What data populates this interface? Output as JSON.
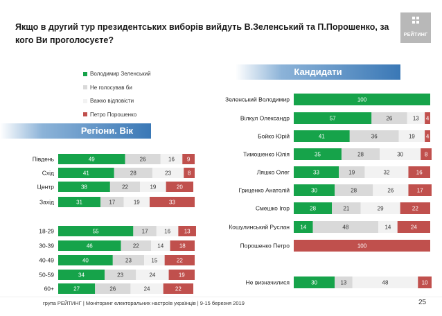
{
  "header": {
    "title": "Якщо в другий тур президентських виборів вийдуть В.Зеленський та П.Порошенко, за кого Ви проголосуєте?",
    "logo_text": "РЕЙТИНГ"
  },
  "banners": {
    "regions": "Регіони. Вік",
    "candidates": "Кандидати"
  },
  "legend": [
    {
      "label": "Володимир Зеленський",
      "color": "#16a34a"
    },
    {
      "label": "Не голосував би",
      "color": "#d9d9d9"
    },
    {
      "label": "Важко відповісти",
      "color": "#f2f2f2"
    },
    {
      "label": "Петро Порошенко",
      "color": "#c0504d"
    }
  ],
  "footer": {
    "text": "група РЕЙТИНГ | Моніторинг електоральних настроїв українців  | 9-15 березня 2019",
    "page": "25"
  },
  "chart_data": [
    {
      "type": "bar",
      "stacked": true,
      "orientation": "horizontal",
      "title": "Регіони. Вік",
      "categories": [
        "Південь",
        "Схід",
        "Центр",
        "Захід",
        "18-29",
        "30-39",
        "40-49",
        "50-59",
        "60+"
      ],
      "series": [
        {
          "name": "Володимир Зеленський",
          "color": "#16a34a",
          "values": [
            49,
            41,
            38,
            31,
            55,
            46,
            40,
            34,
            27
          ]
        },
        {
          "name": "Не голосував би",
          "color": "#d9d9d9",
          "values": [
            26,
            28,
            22,
            17,
            17,
            22,
            23,
            23,
            26
          ]
        },
        {
          "name": "Важко відповісти",
          "color": "#f2f2f2",
          "values": [
            16,
            23,
            19,
            19,
            16,
            14,
            15,
            24,
            24
          ]
        },
        {
          "name": "Петро Порошенко",
          "color": "#c0504d",
          "values": [
            9,
            8,
            20,
            33,
            13,
            18,
            22,
            19,
            22
          ]
        }
      ],
      "xlim": [
        0,
        100
      ]
    },
    {
      "type": "bar",
      "stacked": true,
      "orientation": "horizontal",
      "title": "Кандидати",
      "categories": [
        "Зеленський Володимир",
        "Вілкул Олександр",
        "Бойко Юрій",
        "Тимошенко Юлія",
        "Ляшко Олег",
        "Гриценко Анатолій",
        "Смешко Ігор",
        "Кошулинський Руслан",
        "Порошенко Петро",
        "Не визначилися"
      ],
      "series": [
        {
          "name": "Володимир Зеленський",
          "color": "#16a34a",
          "values": [
            100,
            57,
            41,
            35,
            33,
            30,
            28,
            14,
            0,
            30
          ]
        },
        {
          "name": "Не голосував би",
          "color": "#d9d9d9",
          "values": [
            0,
            26,
            36,
            28,
            19,
            28,
            21,
            48,
            0,
            13
          ]
        },
        {
          "name": "Важко відповісти",
          "color": "#f2f2f2",
          "values": [
            0,
            13,
            19,
            30,
            32,
            26,
            29,
            14,
            0,
            48
          ]
        },
        {
          "name": "Петро Порошенко",
          "color": "#c0504d",
          "values": [
            0,
            4,
            4,
            8,
            16,
            17,
            22,
            24,
            100,
            10
          ]
        }
      ],
      "xlim": [
        0,
        100
      ]
    }
  ]
}
